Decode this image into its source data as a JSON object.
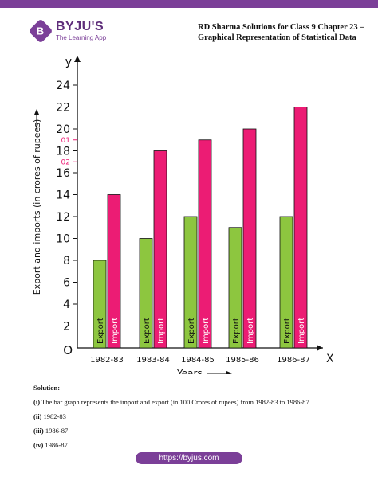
{
  "header": {
    "brand_name": "BYJU'S",
    "brand_tagline": "The Learning App",
    "brand_icon": "byjus-logo-icon",
    "title_line1": "RD Sharma Solutions for Class 9 Chapter 23 –",
    "title_line2": "Graphical Representation of Statistical Data"
  },
  "chart_data": {
    "type": "bar",
    "categories": [
      "1982-83",
      "1983-84",
      "1984-85",
      "1985-86",
      "1986-87"
    ],
    "series": [
      {
        "name": "Export",
        "values": [
          8,
          10,
          12,
          11,
          12
        ],
        "color": "#8dc63f"
      },
      {
        "name": "Import",
        "values": [
          14,
          18,
          19,
          20,
          22
        ],
        "color": "#ec1c74"
      }
    ],
    "xlabel": "Years",
    "ylabel": "Export and imports (in crores of rupees)",
    "y_ticks": [
      2,
      4,
      6,
      8,
      10,
      12,
      14,
      16,
      18,
      20,
      22,
      24
    ],
    "extra_tick_labels": [
      {
        "label": "01",
        "value": 19
      },
      {
        "label": "02",
        "value": 17
      }
    ],
    "ylim": [
      0,
      24
    ],
    "axis_letters": {
      "x": "X",
      "y": "y",
      "origin": "O"
    },
    "bar_labels_rotated": true,
    "grid": false
  },
  "solution": {
    "heading": "Solution:",
    "items": [
      {
        "num": "(i)",
        "text": "The bar graph represents the import and export (in 100 Crores of rupees) from 1982-83 to 1986-87."
      },
      {
        "num": "(ii)",
        "text": "1982-83"
      },
      {
        "num": "(iii)",
        "text": "1986-87"
      },
      {
        "num": "(iv)",
        "text": "1986-87"
      }
    ]
  },
  "footer": {
    "url": "https://byjus.com"
  }
}
